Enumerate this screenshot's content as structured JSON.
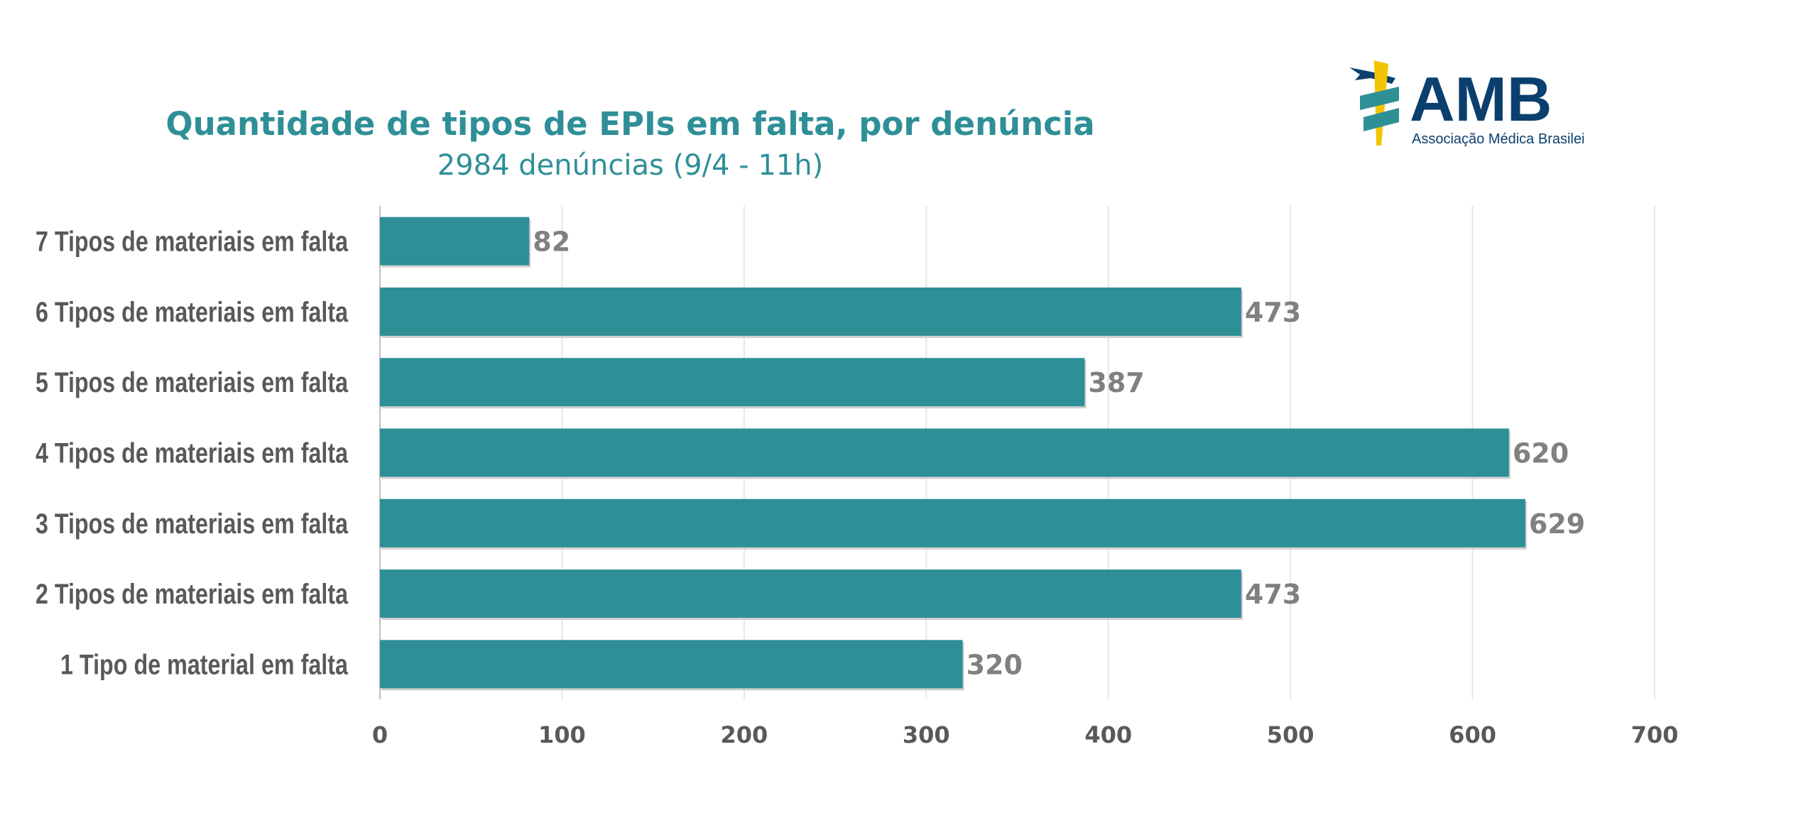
{
  "chart_data": {
    "type": "bar",
    "orientation": "horizontal",
    "title": "Quantidade de tipos de EPIs em falta, por denúncia",
    "subtitle": "2984 denúncias (9/4 - 11h)",
    "categories": [
      "7 Tipos de materiais em falta",
      "6 Tipos de materiais em falta",
      "5 Tipos de materiais em falta",
      "4 Tipos de materiais em falta",
      "3 Tipos de materiais em falta",
      "2 Tipos de materiais em falta",
      "1 Tipo de material em falta"
    ],
    "values": [
      82,
      473,
      387,
      620,
      629,
      473,
      320
    ],
    "xlim": [
      0,
      700
    ],
    "xticks": [
      "0",
      "100",
      "200",
      "300",
      "400",
      "500",
      "600",
      "700"
    ],
    "xlabel": "",
    "ylabel": "",
    "grid": true,
    "bar_color": "#2e8f97"
  },
  "logo": {
    "text": "AMB",
    "subtext": "Associação Médica Brasileira"
  }
}
